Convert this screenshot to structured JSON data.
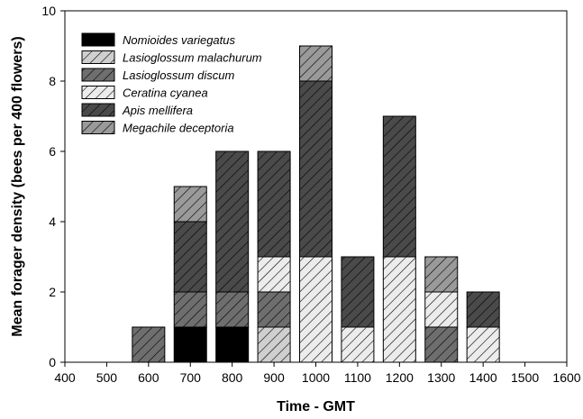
{
  "chart_data": {
    "type": "bar",
    "stacked": true,
    "title": "",
    "xlabel": "Time - GMT",
    "ylabel": "Mean forager density (bees per 400 flowers)",
    "xlim": [
      400,
      1600
    ],
    "ylim": [
      0,
      10
    ],
    "x_ticks": [
      "400",
      "500",
      "600",
      "700",
      "800",
      "900",
      "1000",
      "1100",
      "1200",
      "1300",
      "1400",
      "1500",
      "1600"
    ],
    "y_ticks": [
      "0",
      "2",
      "4",
      "6",
      "8",
      "10"
    ],
    "categories": [
      600,
      700,
      800,
      900,
      1000,
      1100,
      1200,
      1300,
      1400
    ],
    "grid": false,
    "legend_position": "top-left",
    "series": [
      {
        "name": "Nomioides variegatus",
        "color": "#000000",
        "pattern": "solid",
        "values": [
          0,
          1,
          1,
          0,
          0,
          0,
          0,
          0,
          0
        ]
      },
      {
        "name": "Lasioglossum malachurum",
        "color": "#cfcfcf",
        "pattern": "hatch",
        "values": [
          0,
          0,
          0,
          1,
          0,
          0,
          0,
          0,
          0
        ]
      },
      {
        "name": "Lasioglossum discum",
        "color": "#6e6e6e",
        "pattern": "hatch",
        "values": [
          1,
          1,
          1,
          1,
          0,
          0,
          0,
          1,
          0
        ]
      },
      {
        "name": "Ceratina cyanea",
        "color": "#ececec",
        "pattern": "hatch",
        "values": [
          0,
          0,
          0,
          1,
          3,
          1,
          3,
          1,
          1
        ]
      },
      {
        "name": "Apis mellifera",
        "color": "#4a4a4a",
        "pattern": "hatch",
        "values": [
          0,
          2,
          4,
          3,
          5,
          2,
          4,
          0,
          1
        ]
      },
      {
        "name": "Megachile deceptoria",
        "color": "#9a9a9a",
        "pattern": "hatch",
        "values": [
          0,
          1,
          0,
          0,
          1,
          0,
          0,
          1,
          0
        ]
      }
    ]
  }
}
